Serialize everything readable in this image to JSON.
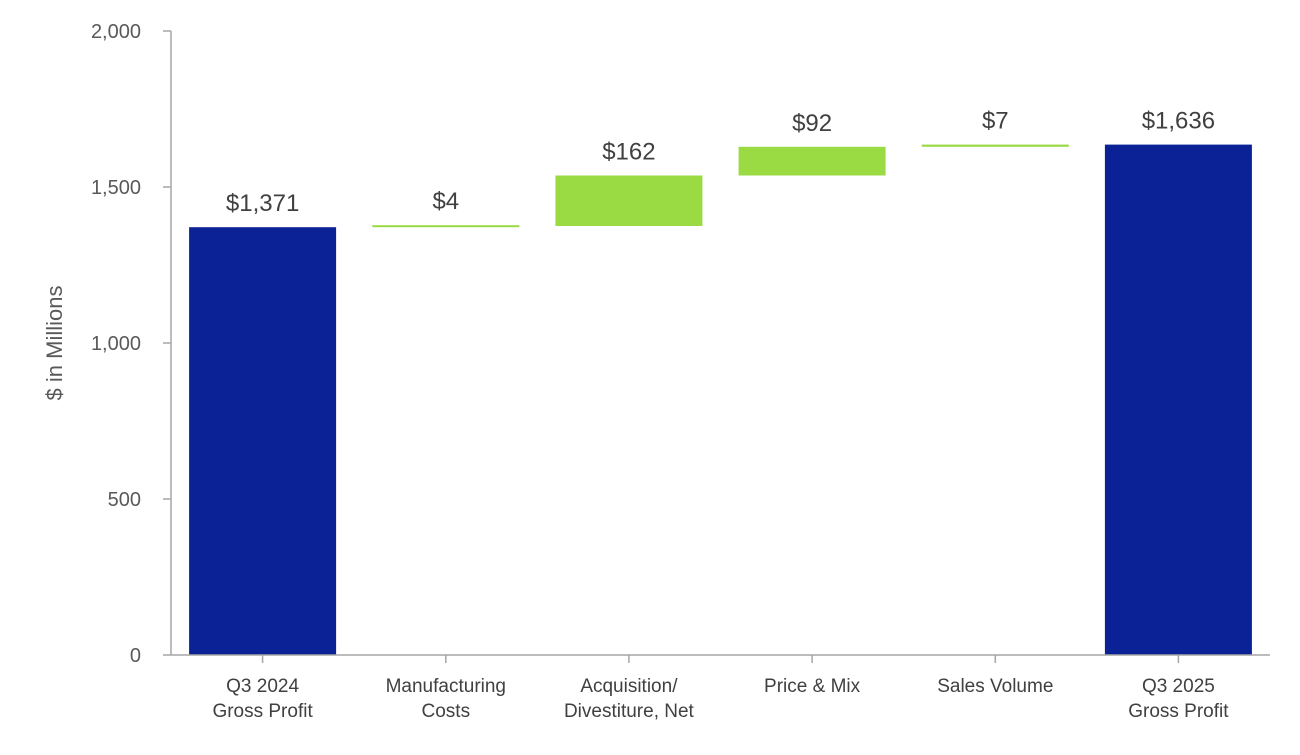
{
  "chart_data": {
    "type": "waterfall",
    "ylabel": "$ in Millions",
    "ylim": [
      0,
      2000
    ],
    "yticks": [
      "0",
      "500",
      "1,000",
      "1,500",
      "2,000"
    ],
    "ytick_values": [
      0,
      500,
      1000,
      1500,
      2000
    ],
    "grid": false,
    "colors": {
      "total": "#0A2296",
      "increase": "#9ADB44",
      "axis": "#A6A6A6"
    },
    "bars": [
      {
        "kind": "total",
        "lines": [
          "Q3 2024",
          "Gross Profit"
        ],
        "value": 1371,
        "label": "$1,371"
      },
      {
        "kind": "increase",
        "lines": [
          "Manufacturing",
          "Costs"
        ],
        "value": 4,
        "label": "$4"
      },
      {
        "kind": "increase",
        "lines": [
          "Acquisition/",
          "Divestiture, Net"
        ],
        "value": 162,
        "label": "$162"
      },
      {
        "kind": "increase",
        "lines": [
          "Price & Mix"
        ],
        "value": 92,
        "label": "$92"
      },
      {
        "kind": "increase",
        "lines": [
          "Sales Volume"
        ],
        "value": 7,
        "label": "$7"
      },
      {
        "kind": "total",
        "lines": [
          "Q3 2025",
          "Gross Profit"
        ],
        "value": 1636,
        "label": "$1,636"
      }
    ]
  }
}
